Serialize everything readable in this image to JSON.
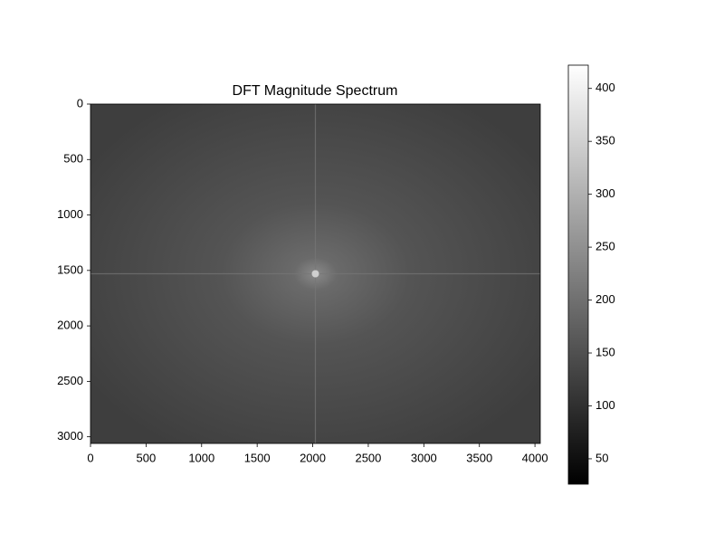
{
  "chart_data": {
    "type": "image",
    "title": "DFT Magnitude Spectrum",
    "colormap": "gray",
    "xlim": [
      0,
      4048
    ],
    "ylim": [
      3060,
      0
    ],
    "xticks": [
      0,
      500,
      1000,
      1500,
      2000,
      2500,
      3000,
      3500,
      4000
    ],
    "yticks": [
      0,
      500,
      1000,
      1500,
      2000,
      2500,
      3000
    ],
    "colorbar": {
      "clim": [
        26,
        422
      ],
      "ticks": [
        50,
        100,
        150,
        200,
        250,
        300,
        350,
        400
      ]
    }
  }
}
